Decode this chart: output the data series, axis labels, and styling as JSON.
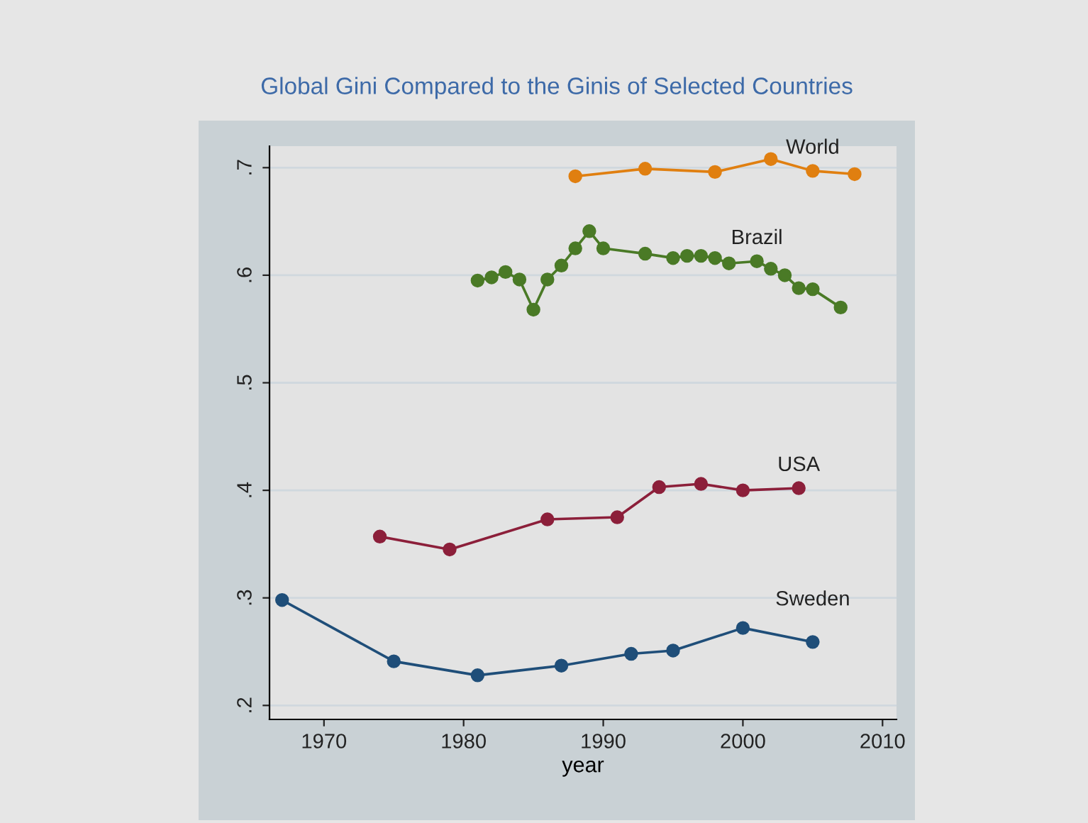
{
  "chart_data": {
    "type": "line",
    "title": "Global Gini Compared to the Ginis of Selected Countries",
    "xlabel": "year",
    "xlim": [
      1966.1,
      2011
    ],
    "xticks": [
      1970,
      1980,
      1990,
      2000,
      2010
    ],
    "ylim": [
      0.187,
      0.72
    ],
    "yticks": [
      {
        "value": 0.2,
        "label": ".2"
      },
      {
        "value": 0.3,
        "label": ".3"
      },
      {
        "value": 0.4,
        "label": ".4"
      },
      {
        "value": 0.5,
        "label": ".5"
      },
      {
        "value": 0.6,
        "label": ".6"
      },
      {
        "value": 0.7,
        "label": ".7"
      }
    ],
    "grid": "y",
    "marker": "circle",
    "line_style": "solid",
    "legend": false,
    "series": [
      {
        "name": "World",
        "color": "#e07f10",
        "x": [
          1988,
          1993,
          1998,
          2002,
          2005,
          2008
        ],
        "values": [
          0.692,
          0.699,
          0.696,
          0.708,
          0.697,
          0.694
        ]
      },
      {
        "name": "Brazil",
        "color": "#4a7a26",
        "x": [
          1981,
          1982,
          1983,
          1984,
          1985,
          1986,
          1987,
          1988,
          1989,
          1990,
          1993,
          1995,
          1996,
          1997,
          1998,
          1999,
          2001,
          2002,
          2003,
          2004,
          2005,
          2007
        ],
        "values": [
          0.595,
          0.598,
          0.603,
          0.596,
          0.568,
          0.596,
          0.609,
          0.625,
          0.641,
          0.625,
          0.62,
          0.616,
          0.618,
          0.618,
          0.616,
          0.611,
          0.613,
          0.606,
          0.6,
          0.588,
          0.587,
          0.57
        ]
      },
      {
        "name": "USA",
        "color": "#8c1f3a",
        "x": [
          1974,
          1979,
          1986,
          1991,
          1994,
          1997,
          2000,
          2004
        ],
        "values": [
          0.357,
          0.345,
          0.373,
          0.375,
          0.403,
          0.406,
          0.4,
          0.402
        ]
      },
      {
        "name": "Sweden",
        "color": "#1f4e79",
        "x": [
          1967,
          1975,
          1981,
          1987,
          1992,
          1995,
          2000,
          2005
        ],
        "values": [
          0.298,
          0.241,
          0.228,
          0.237,
          0.248,
          0.251,
          0.272,
          0.259
        ]
      }
    ]
  }
}
